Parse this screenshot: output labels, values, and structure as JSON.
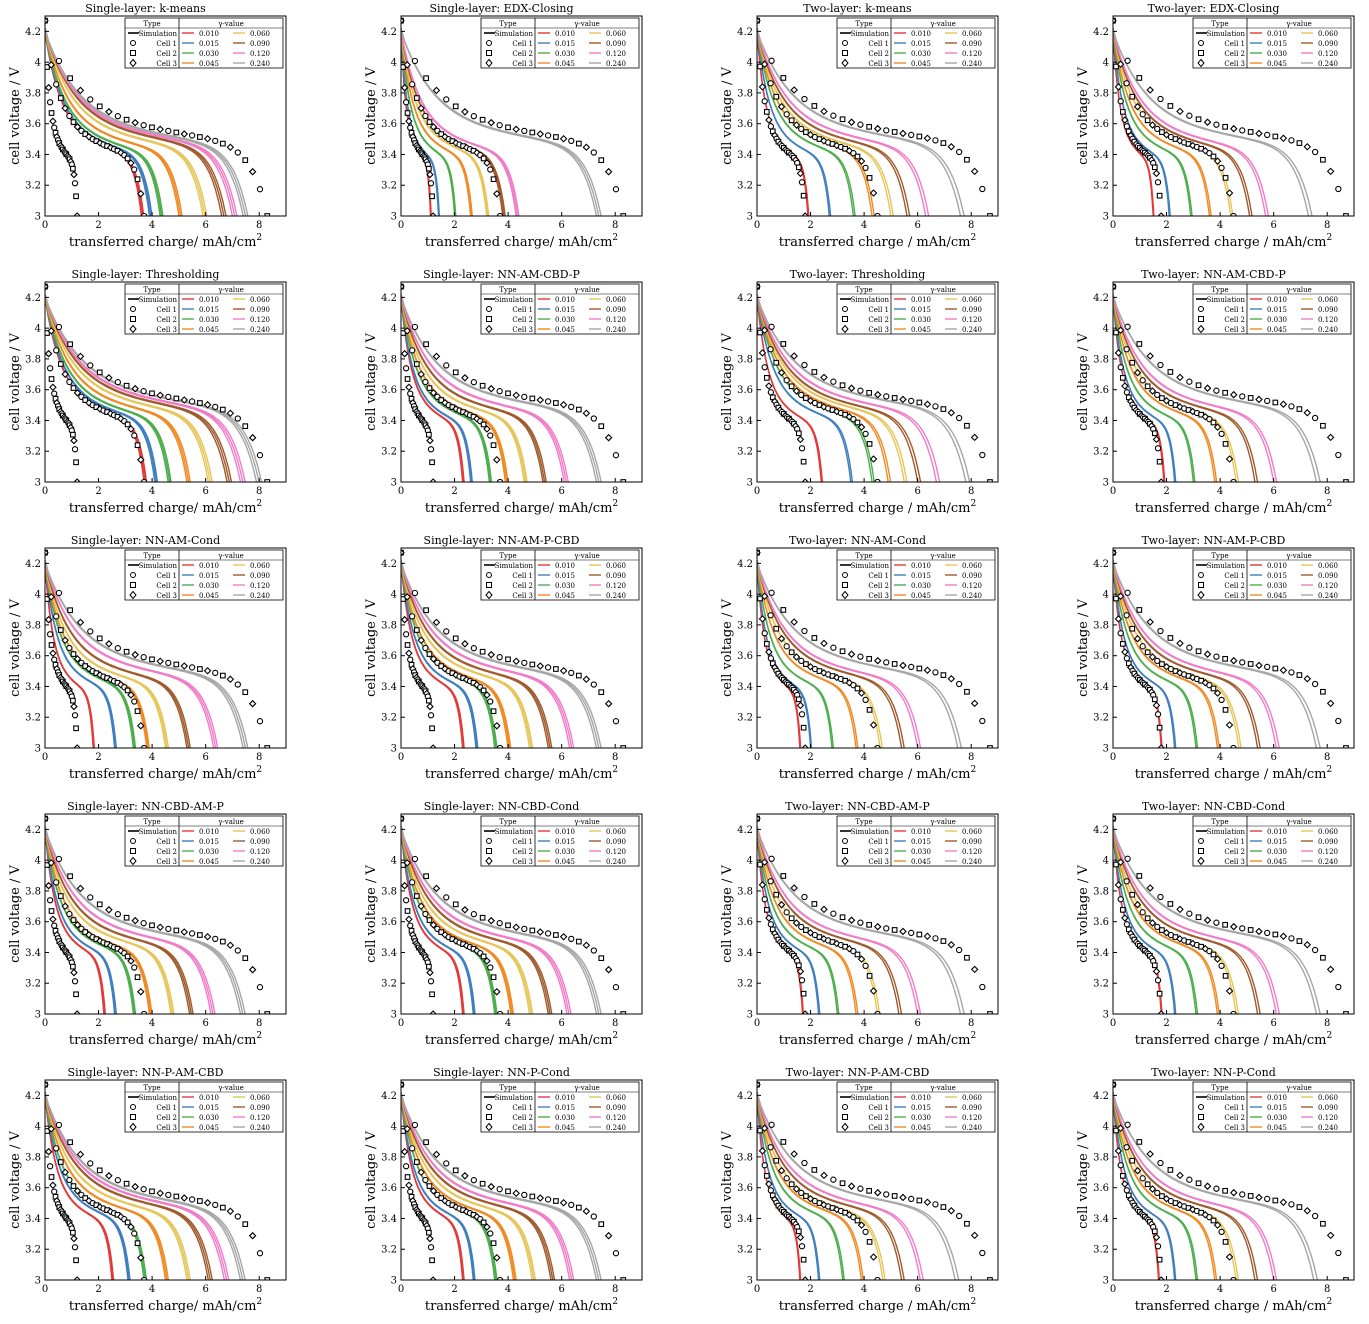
{
  "figure": {
    "ylabel": "cell voltage / V",
    "xlabel_single": "transferred charge/ mAh/cm",
    "xlabel_two": "transferred charge / mAh/cm",
    "xlabel_sup": "2",
    "legend_type_title": "Type",
    "legend_gamma_title": "γ-value",
    "legend_type_items": [
      "Simulation",
      "Cell 1",
      "Cell 2",
      "Cell 3"
    ],
    "legend_gamma_items": [
      "0.010",
      "0.015",
      "0.030",
      "0.045",
      "0.060",
      "0.090",
      "0.120",
      "0.240"
    ],
    "colors": {
      "0.010": "#e23a3a",
      "0.015": "#3f7fbf",
      "0.030": "#4cae4c",
      "0.045": "#f08a24",
      "0.060": "#e6c65a",
      "0.090": "#a05a2c",
      "0.120": "#f07cc8",
      "0.240": "#a6a6a6"
    }
  },
  "chart_data": [
    {
      "type": "line",
      "title": "Single-layer: k-means",
      "layer": "single",
      "xlim": [
        0,
        9
      ],
      "ylim": [
        3,
        4.3
      ],
      "series_capacity": [
        3.6,
        3.9,
        4.3,
        5.0,
        5.9,
        6.6,
        7.0,
        7.4
      ],
      "cells_capacity": [
        1.2,
        3.7,
        8.3
      ]
    },
    {
      "type": "line",
      "title": "Single-layer: EDX-Closing",
      "layer": "single",
      "xlim": [
        0,
        9
      ],
      "ylim": [
        3,
        4.3
      ],
      "series_capacity": [
        1.1,
        1.4,
        2.0,
        2.6,
        3.2,
        3.8,
        4.3,
        7.3
      ],
      "cells_capacity": [
        1.2,
        3.7,
        8.3
      ]
    },
    {
      "type": "line",
      "title": "Two-layer: k-means",
      "layer": "two",
      "xlim": [
        0,
        9
      ],
      "ylim": [
        3,
        4.3
      ],
      "series_capacity": [
        1.9,
        2.7,
        3.6,
        4.3,
        5.0,
        5.6,
        6.3,
        7.6
      ],
      "cells_capacity": [
        1.8,
        4.5,
        8.7
      ]
    },
    {
      "type": "line",
      "title": "Two-layer: EDX-Closing",
      "layer": "two",
      "xlim": [
        0,
        9
      ],
      "ylim": [
        3,
        4.3
      ],
      "series_capacity": [
        1.5,
        2.1,
        2.9,
        3.6,
        4.4,
        5.1,
        5.7,
        7.3
      ],
      "cells_capacity": [
        1.8,
        4.5,
        8.7
      ]
    },
    {
      "type": "line",
      "title": "Single-layer: Thresholding",
      "layer": "single",
      "xlim": [
        0,
        9
      ],
      "ylim": [
        3,
        4.3
      ],
      "series_capacity": [
        3.7,
        4.1,
        4.6,
        5.3,
        6.1,
        6.8,
        7.3,
        7.9
      ],
      "cells_capacity": [
        1.2,
        3.7,
        8.3
      ]
    },
    {
      "type": "line",
      "title": "Single-layer: NN-AM-CBD-P",
      "layer": "single",
      "xlim": [
        0,
        9
      ],
      "ylim": [
        3,
        4.3
      ],
      "series_capacity": [
        2.3,
        2.6,
        3.3,
        3.9,
        4.6,
        5.3,
        6.1,
        7.3
      ],
      "cells_capacity": [
        1.2,
        3.7,
        8.3
      ]
    },
    {
      "type": "line",
      "title": "Two-layer: Thresholding",
      "layer": "two",
      "xlim": [
        0,
        9
      ],
      "ylim": [
        3,
        4.3
      ],
      "series_capacity": [
        2.4,
        3.5,
        4.3,
        4.9,
        5.5,
        6.0,
        6.7,
        7.8
      ],
      "cells_capacity": [
        1.8,
        4.5,
        8.7
      ]
    },
    {
      "type": "line",
      "title": "Two-layer: NN-AM-CBD-P",
      "layer": "two",
      "xlim": [
        0,
        9
      ],
      "ylim": [
        3,
        4.3
      ],
      "series_capacity": [
        1.9,
        2.3,
        3.0,
        3.8,
        4.6,
        5.3,
        6.0,
        7.6
      ],
      "cells_capacity": [
        1.8,
        4.5,
        8.7
      ]
    },
    {
      "type": "line",
      "title": "Single-layer: NN-AM-Cond",
      "layer": "single",
      "xlim": [
        0,
        9
      ],
      "ylim": [
        3,
        4.3
      ],
      "series_capacity": [
        1.8,
        2.6,
        3.3,
        3.8,
        4.5,
        5.3,
        6.3,
        7.4
      ],
      "cells_capacity": [
        1.2,
        3.7,
        8.3
      ]
    },
    {
      "type": "line",
      "title": "Single-layer: NN-AM-P-CBD",
      "layer": "single",
      "xlim": [
        0,
        9
      ],
      "ylim": [
        3,
        4.3
      ],
      "series_capacity": [
        2.3,
        2.8,
        3.5,
        4.0,
        4.8,
        5.5,
        6.3,
        7.3
      ],
      "cells_capacity": [
        1.2,
        3.7,
        8.3
      ]
    },
    {
      "type": "line",
      "title": "Two-layer: NN-AM-Cond",
      "layer": "two",
      "xlim": [
        0,
        9
      ],
      "ylim": [
        3,
        4.3
      ],
      "series_capacity": [
        1.6,
        2.0,
        2.8,
        3.7,
        4.6,
        5.4,
        6.0,
        7.5
      ],
      "cells_capacity": [
        1.8,
        4.5,
        8.7
      ]
    },
    {
      "type": "line",
      "title": "Two-layer: NN-AM-P-CBD",
      "layer": "two",
      "xlim": [
        0,
        9
      ],
      "ylim": [
        3,
        4.3
      ],
      "series_capacity": [
        1.8,
        2.3,
        3.1,
        3.9,
        4.7,
        5.4,
        6.1,
        7.6
      ],
      "cells_capacity": [
        1.8,
        4.5,
        8.7
      ]
    },
    {
      "type": "line",
      "title": "Single-layer: NN-CBD-AM-P",
      "layer": "single",
      "xlim": [
        0,
        9
      ],
      "ylim": [
        3,
        4.3
      ],
      "series_capacity": [
        2.2,
        2.6,
        3.3,
        3.9,
        4.7,
        5.4,
        6.2,
        7.3
      ],
      "cells_capacity": [
        1.2,
        3.7,
        8.3
      ]
    },
    {
      "type": "line",
      "title": "Single-layer: NN-CBD-Cond",
      "layer": "single",
      "xlim": [
        0,
        9
      ],
      "ylim": [
        3,
        4.3
      ],
      "series_capacity": [
        2.3,
        2.7,
        3.5,
        4.1,
        4.8,
        5.5,
        6.2,
        7.3
      ],
      "cells_capacity": [
        1.2,
        3.7,
        8.3
      ]
    },
    {
      "type": "line",
      "title": "Two-layer: NN-CBD-AM-P",
      "layer": "two",
      "xlim": [
        0,
        9
      ],
      "ylim": [
        3,
        4.3
      ],
      "series_capacity": [
        1.7,
        2.3,
        3.0,
        3.7,
        4.5,
        5.3,
        6.0,
        7.6
      ],
      "cells_capacity": [
        1.8,
        4.5,
        8.7
      ]
    },
    {
      "type": "line",
      "title": "Two-layer: NN-CBD-Cond",
      "layer": "two",
      "xlim": [
        0,
        9
      ],
      "ylim": [
        3,
        4.3
      ],
      "series_capacity": [
        1.8,
        2.3,
        3.1,
        3.9,
        4.6,
        5.4,
        6.1,
        7.6
      ],
      "cells_capacity": [
        1.8,
        4.5,
        8.7
      ]
    },
    {
      "type": "line",
      "title": "Single-layer: NN-P-AM-CBD",
      "layer": "single",
      "xlim": [
        0,
        9
      ],
      "ylim": [
        3,
        4.3
      ],
      "series_capacity": [
        2.5,
        3.1,
        3.7,
        4.5,
        5.3,
        6.1,
        6.7,
        7.3
      ],
      "cells_capacity": [
        1.2,
        3.7,
        8.3
      ]
    },
    {
      "type": "line",
      "title": "Single-layer: NN-P-Cond",
      "layer": "single",
      "xlim": [
        0,
        9
      ],
      "ylim": [
        3,
        4.3
      ],
      "series_capacity": [
        2.3,
        2.7,
        3.5,
        4.2,
        4.9,
        5.6,
        6.3,
        7.3
      ],
      "cells_capacity": [
        1.2,
        3.7,
        8.3
      ]
    },
    {
      "type": "line",
      "title": "Two-layer: NN-P-AM-CBD",
      "layer": "two",
      "xlim": [
        0,
        9
      ],
      "ylim": [
        3,
        4.3
      ],
      "series_capacity": [
        1.6,
        2.3,
        3.2,
        3.9,
        4.7,
        5.4,
        6.1,
        7.4
      ],
      "cells_capacity": [
        1.8,
        4.5,
        8.7
      ]
    },
    {
      "type": "line",
      "title": "Two-layer: NN-P-Cond",
      "layer": "two",
      "xlim": [
        0,
        9
      ],
      "ylim": [
        3,
        4.3
      ],
      "series_capacity": [
        1.7,
        2.3,
        3.1,
        3.8,
        4.6,
        5.3,
        6.0,
        7.5
      ],
      "cells_capacity": [
        1.8,
        4.5,
        8.7
      ]
    }
  ]
}
